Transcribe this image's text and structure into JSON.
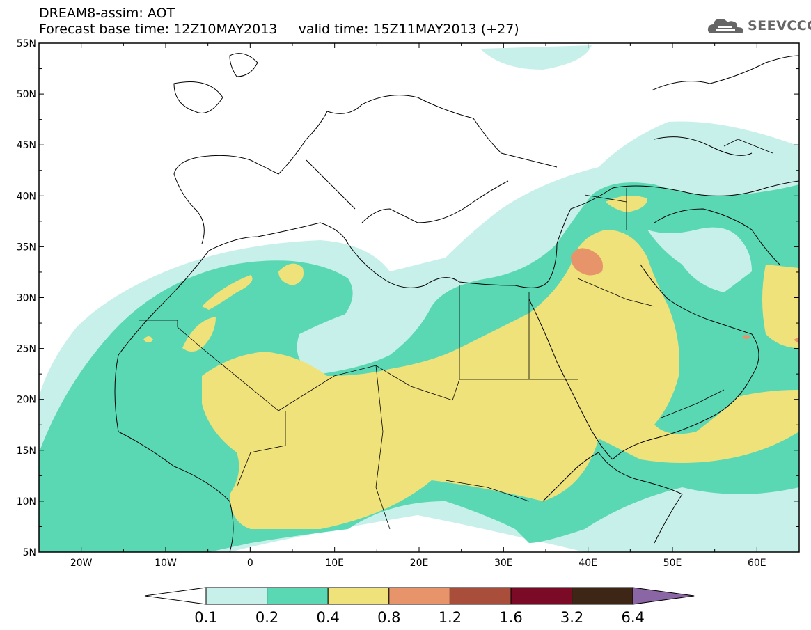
{
  "header": {
    "title_line1": "DREAM8-assim: AOT",
    "title_line2": "Forecast base time: 12Z10MAY2013     valid time: 15Z11MAY2013 (+27)"
  },
  "logo": {
    "text": "SEEVCCC",
    "icon": "cloud-icon"
  },
  "map": {
    "lon_range": [
      -25,
      65
    ],
    "lat_range": [
      5,
      55
    ],
    "lat_labels": [
      "55N",
      "50N",
      "45N",
      "40N",
      "35N",
      "30N",
      "25N",
      "20N",
      "15N",
      "10N",
      "5N"
    ],
    "lon_labels": [
      "20W",
      "10W",
      "0",
      "10E",
      "20E",
      "30E",
      "40E",
      "50E",
      "60E"
    ]
  },
  "colorbar": {
    "labels": [
      "0.1",
      "0.2",
      "0.4",
      "0.8",
      "1.2",
      "1.6",
      "3.2",
      "6.4"
    ],
    "colors": [
      "#ffffff",
      "#c8f0ea",
      "#5ad8b4",
      "#f0e27a",
      "#e8946a",
      "#a84e3a",
      "#7a0a25",
      "#3e2616",
      "#8a66a4"
    ]
  }
}
